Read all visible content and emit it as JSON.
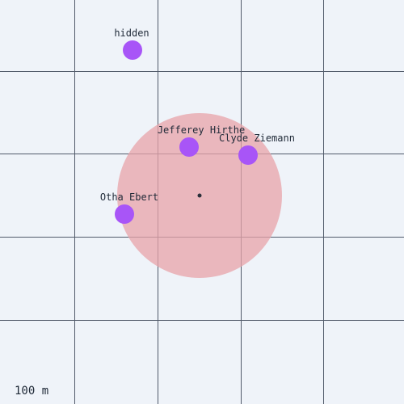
{
  "map": {
    "colors": {
      "background": "#eff3f9",
      "grid": "#525b6b",
      "marker": "#a855f7",
      "range_circle": "#e8a3a8",
      "center_dot": "#2a2f3a"
    },
    "scale_label": "100 m",
    "people": [
      {
        "name": "hidden"
      },
      {
        "name": "Jefferey Hirthe"
      },
      {
        "name": "Clyde Ziemann"
      },
      {
        "name": "Otha Ebert"
      }
    ]
  }
}
